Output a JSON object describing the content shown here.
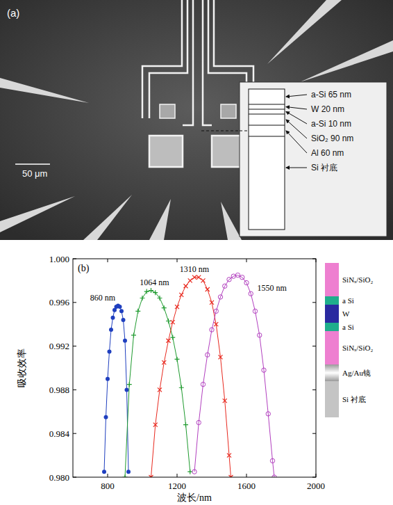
{
  "panel_a": {
    "label": "(a)",
    "scale_bar": "50 μm",
    "layers": [
      "a-Si 65 nm",
      "W 20 nm",
      "a-Si 10 nm",
      "SiO₂ 90 nm",
      "Al 60 nm",
      "Si 衬底"
    ]
  },
  "chart_data": {
    "type": "line",
    "panel_label": "(b)",
    "x_label": "波长/nm",
    "y_label": "吸收效率",
    "xlim": [
      600,
      2000
    ],
    "xticks": [
      800,
      1200,
      1600,
      2000
    ],
    "ylim": [
      0.98,
      1.0
    ],
    "yticks": [
      {
        "value": 0.98,
        "label": "0.980"
      },
      0.984,
      0.988,
      0.992,
      0.996,
      {
        "value": 1.0,
        "label": "1.000"
      }
    ],
    "grid": false,
    "series": [
      {
        "name": "860 nm",
        "color": "#1f3fbf",
        "marker": "circle",
        "x": [
          780,
          790,
          800,
          810,
          820,
          830,
          840,
          850,
          860,
          870,
          880,
          890,
          900,
          910,
          920
        ],
        "values": [
          0.9805,
          0.9855,
          0.989,
          0.9915,
          0.9935,
          0.9946,
          0.9953,
          0.9956,
          0.9957,
          0.9956,
          0.9952,
          0.9944,
          0.9925,
          0.988,
          0.9805
        ]
      },
      {
        "name": "1064 nm",
        "color": "#1e9a2e",
        "marker": "plus",
        "x": [
          900,
          925,
          950,
          975,
          1000,
          1025,
          1050,
          1075,
          1100,
          1125,
          1150,
          1175,
          1200,
          1225,
          1250,
          1275
        ],
        "values": [
          0.98,
          0.9885,
          0.993,
          0.9952,
          0.9964,
          0.997,
          0.9971,
          0.9969,
          0.9964,
          0.9955,
          0.9943,
          0.9928,
          0.9908,
          0.9882,
          0.9848,
          0.9805
        ]
      },
      {
        "name": "1310 nm",
        "color": "#e8281e",
        "marker": "x",
        "x": [
          1050,
          1075,
          1100,
          1125,
          1150,
          1175,
          1200,
          1225,
          1250,
          1275,
          1300,
          1325,
          1350,
          1375,
          1400,
          1425,
          1450,
          1475,
          1500,
          1510
        ],
        "values": [
          0.98,
          0.9848,
          0.988,
          0.9905,
          0.9925,
          0.9942,
          0.9956,
          0.9967,
          0.9975,
          0.998,
          0.9983,
          0.9983,
          0.998,
          0.9972,
          0.996,
          0.994,
          0.991,
          0.987,
          0.982,
          0.98
        ]
      },
      {
        "name": "1550 nm",
        "color": "#b23fbf",
        "marker": "circle_open",
        "x": [
          1300,
          1325,
          1350,
          1375,
          1400,
          1425,
          1450,
          1475,
          1500,
          1525,
          1550,
          1575,
          1600,
          1625,
          1650,
          1675,
          1700,
          1725,
          1750,
          1760
        ],
        "values": [
          0.9805,
          0.985,
          0.9885,
          0.9912,
          0.9935,
          0.9952,
          0.9965,
          0.9975,
          0.9981,
          0.9984,
          0.9985,
          0.9983,
          0.9978,
          0.9968,
          0.9952,
          0.993,
          0.9898,
          0.9858,
          0.9815,
          0.98
        ]
      }
    ]
  },
  "panel_b_stack": {
    "layers": [
      {
        "label": "SiNₓ/SiO₂",
        "color": "#ee7fd0"
      },
      {
        "label": "a Si",
        "color": "#1fae8c"
      },
      {
        "label": "W",
        "color": "#2a2aa0"
      },
      {
        "label": "a Si",
        "color": "#1fae8c"
      },
      {
        "label": "SiNₓ/SiO₂",
        "color": "#ee7fd0"
      },
      {
        "label": "Ag/Au镜",
        "color": "#9a9a9a"
      },
      {
        "label": "Si 衬底",
        "color": "#c4c4c4"
      }
    ]
  }
}
